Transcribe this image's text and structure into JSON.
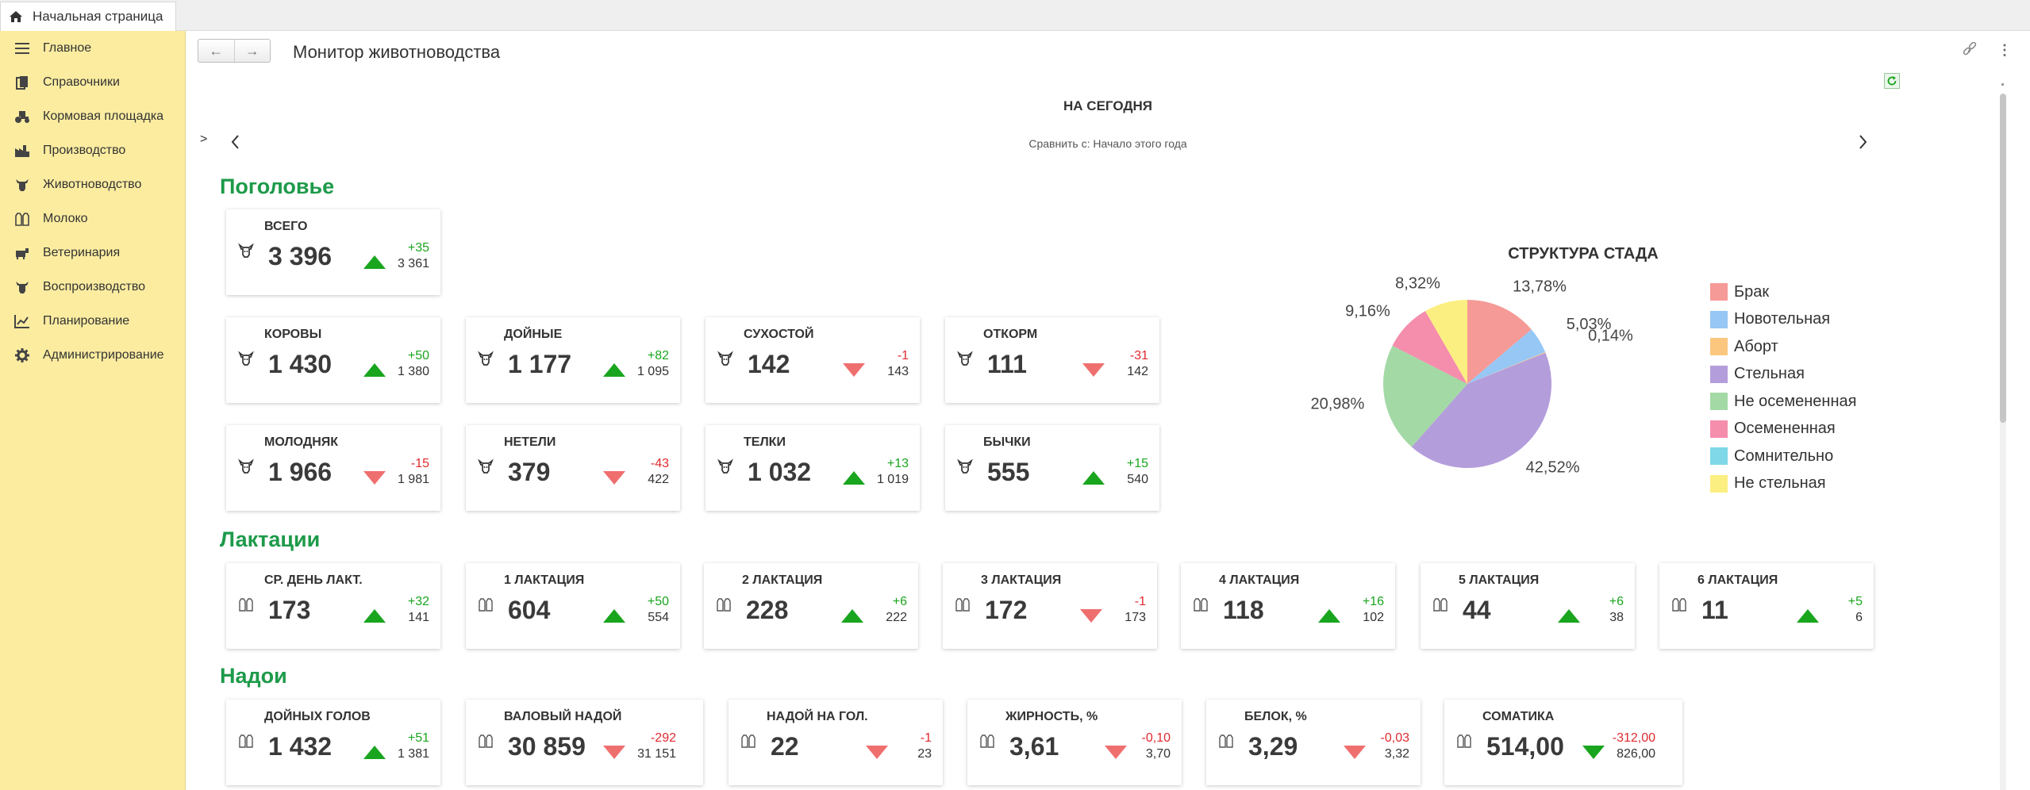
{
  "app": {
    "home_tab": "Начальная страница",
    "page_title": "Монитор животноводства"
  },
  "sidebar": {
    "items": [
      {
        "label": "Главное",
        "icon": "menu-icon"
      },
      {
        "label": "Справочники",
        "icon": "books-icon"
      },
      {
        "label": "Кормовая площадка",
        "icon": "tractor-icon"
      },
      {
        "label": "Производство",
        "icon": "factory-icon"
      },
      {
        "label": "Животноводство",
        "icon": "cow-icon"
      },
      {
        "label": "Молоко",
        "icon": "milk-icon"
      },
      {
        "label": "Ветеринария",
        "icon": "vet-icon"
      },
      {
        "label": "Воспроизводство",
        "icon": "cow-icon"
      },
      {
        "label": "Планирование",
        "icon": "chart-icon"
      },
      {
        "label": "Администрирование",
        "icon": "gear-icon"
      }
    ]
  },
  "header": {
    "today": "НА СЕГОДНЯ",
    "compare": "Сравнить с: Начало этого года",
    "expand": ">"
  },
  "sections": {
    "herd": "Поголовье",
    "lact": "Лактации",
    "yields": "Надои"
  },
  "cards": {
    "total": {
      "title": "ВСЕГО",
      "value": "3 396",
      "delta": "+35",
      "prev": "3 361"
    },
    "cows": {
      "title": "КОРОВЫ",
      "value": "1 430",
      "delta": "+50",
      "prev": "1 380"
    },
    "milking": {
      "title": "ДОЙНЫЕ",
      "value": "1 177",
      "delta": "+82",
      "prev": "1 095"
    },
    "dry": {
      "title": "СУХОСТОЙ",
      "value": "142",
      "delta": "-1",
      "prev": "143"
    },
    "fattening": {
      "title": "ОТКОРМ",
      "value": "111",
      "delta": "-31",
      "prev": "142"
    },
    "young": {
      "title": "МОЛОДНЯК",
      "value": "1 966",
      "delta": "-15",
      "prev": "1 981"
    },
    "heifers": {
      "title": "НЕТЕЛИ",
      "value": "379",
      "delta": "-43",
      "prev": "422"
    },
    "calves": {
      "title": "ТЕЛКИ",
      "value": "1 032",
      "delta": "+13",
      "prev": "1 019"
    },
    "bulls": {
      "title": "БЫЧКИ",
      "value": "555",
      "delta": "+15",
      "prev": "540"
    },
    "avgday": {
      "title": "СР. ДЕНЬ ЛАКТ.",
      "value": "173",
      "delta": "+32",
      "prev": "141"
    },
    "l1": {
      "title": "1 ЛАКТАЦИЯ",
      "value": "604",
      "delta": "+50",
      "prev": "554"
    },
    "l2": {
      "title": "2 ЛАКТАЦИЯ",
      "value": "228",
      "delta": "+6",
      "prev": "222"
    },
    "l3": {
      "title": "3 ЛАКТАЦИЯ",
      "value": "172",
      "delta": "-1",
      "prev": "173"
    },
    "l4": {
      "title": "4 ЛАКТАЦИЯ",
      "value": "118",
      "delta": "+16",
      "prev": "102"
    },
    "l5": {
      "title": "5 ЛАКТАЦИЯ",
      "value": "44",
      "delta": "+6",
      "prev": "38"
    },
    "l6": {
      "title": "6 ЛАКТАЦИЯ",
      "value": "11",
      "delta": "+5",
      "prev": "6"
    },
    "milkheads": {
      "title": "ДОЙНЫХ ГОЛОВ",
      "value": "1 432",
      "delta": "+51",
      "prev": "1 381"
    },
    "gross": {
      "title": "ВАЛОВЫЙ НАДОЙ",
      "value": "30 859",
      "delta": "-292",
      "prev": "31 151"
    },
    "perhead": {
      "title": "НАДОЙ НА ГОЛ.",
      "value": "22",
      "delta": "-1",
      "prev": "23"
    },
    "fat": {
      "title": "ЖИРНОСТЬ, %",
      "value": "3,61",
      "delta": "-0,10",
      "prev": "3,70"
    },
    "protein": {
      "title": "БЕЛОК, %",
      "value": "3,29",
      "delta": "-0,03",
      "prev": "3,32"
    },
    "somatic": {
      "title": "СОМАТИКА",
      "value": "514,00",
      "delta": "-312,00",
      "prev": "826,00"
    }
  },
  "chart_data": {
    "type": "pie",
    "title": "СТРУКТУРА СТАДА",
    "categories": [
      "Брак",
      "Новотельная",
      "Аборт",
      "Стельная",
      "Не осемененная",
      "Осемененная",
      "Сомнительно",
      "Не стельная"
    ],
    "values": [
      13.78,
      5.03,
      0.14,
      42.52,
      20.98,
      9.16,
      0.0,
      8.32
    ],
    "labels": [
      "13,78%",
      "5,03%",
      "0,14%",
      "42,52%",
      "20,98%",
      "9,16%",
      "",
      "8,32%"
    ],
    "colors": [
      "#f59a96",
      "#96c7f5",
      "#fbc77e",
      "#b49ddb",
      "#a3d9a5",
      "#f58dad",
      "#7ed8e8",
      "#fcef82"
    ]
  }
}
